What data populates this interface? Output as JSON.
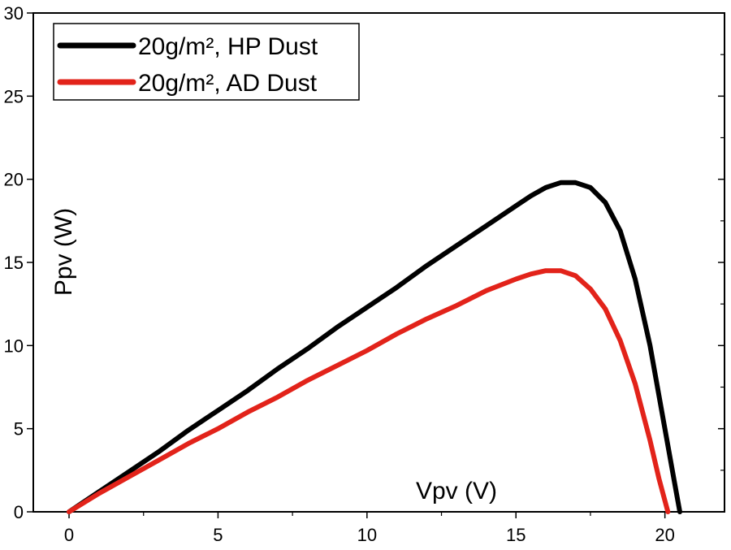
{
  "chart_data": {
    "type": "line",
    "title": "",
    "xlabel": "Vpv (V)",
    "ylabel": "Ppv (W)",
    "xlim": [
      -1.2,
      22
    ],
    "ylim": [
      0,
      30
    ],
    "xticks": [
      0,
      5,
      10,
      15,
      20
    ],
    "yticks": [
      0,
      5,
      10,
      15,
      20,
      25,
      30
    ],
    "grid": false,
    "legend_position": "top-left",
    "series": [
      {
        "name": "20g/m², HP Dust",
        "color": "#000000",
        "x": [
          0,
          1,
          2,
          3,
          4,
          5,
          6,
          7,
          8,
          9,
          10,
          11,
          12,
          13,
          14,
          15,
          15.5,
          16,
          16.5,
          17,
          17.5,
          18,
          18.5,
          19,
          19.5,
          20,
          20.3,
          20.5
        ],
        "y": [
          0,
          1.2,
          2.4,
          3.6,
          4.9,
          6.1,
          7.3,
          8.6,
          9.8,
          11.1,
          12.3,
          13.5,
          14.8,
          16.0,
          17.2,
          18.4,
          19.0,
          19.5,
          19.8,
          19.8,
          19.5,
          18.6,
          16.9,
          14.0,
          10.0,
          5.0,
          2.0,
          0
        ]
      },
      {
        "name": "20g/m², AD Dust",
        "color": "#e2231a",
        "x": [
          0,
          1,
          2,
          3,
          4,
          5,
          6,
          7,
          8,
          9,
          10,
          11,
          12,
          13,
          14,
          15,
          15.5,
          16,
          16.5,
          17,
          17.5,
          18,
          18.5,
          19,
          19.5,
          19.8,
          20.1
        ],
        "y": [
          0,
          1.1,
          2.1,
          3.1,
          4.1,
          5.0,
          6.0,
          6.9,
          7.9,
          8.8,
          9.7,
          10.7,
          11.6,
          12.4,
          13.3,
          14.0,
          14.3,
          14.5,
          14.5,
          14.2,
          13.4,
          12.2,
          10.3,
          7.7,
          4.3,
          2.0,
          0
        ]
      }
    ]
  }
}
